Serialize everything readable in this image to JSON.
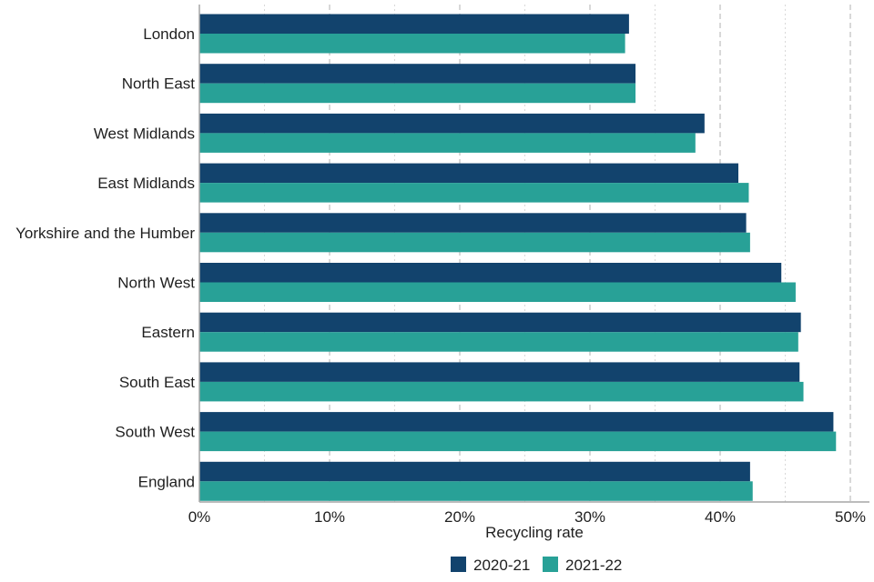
{
  "chart_data": {
    "type": "bar",
    "orientation": "horizontal",
    "title": "",
    "xlabel": "Recycling rate",
    "ylabel": "",
    "xlim": [
      0,
      50
    ],
    "x_ticks": [
      0,
      10,
      20,
      30,
      40,
      50
    ],
    "x_tick_labels": [
      "0%",
      "10%",
      "20%",
      "30%",
      "40%",
      "50%"
    ],
    "grid": "vertical dashed",
    "legend_position": "bottom",
    "categories": [
      "London",
      "North East",
      "West Midlands",
      "East Midlands",
      "Yorkshire and the Humber",
      "North West",
      "Eastern",
      "South East",
      "South West",
      "England"
    ],
    "series": [
      {
        "name": "2020-21",
        "color": "#12436d",
        "values": [
          33.0,
          33.5,
          38.8,
          41.4,
          42.0,
          44.7,
          46.2,
          46.1,
          48.7,
          42.3
        ]
      },
      {
        "name": "2021-22",
        "color": "#28a197",
        "values": [
          32.7,
          33.5,
          38.1,
          42.2,
          42.3,
          45.8,
          46.0,
          46.4,
          48.9,
          42.5
        ]
      }
    ]
  }
}
